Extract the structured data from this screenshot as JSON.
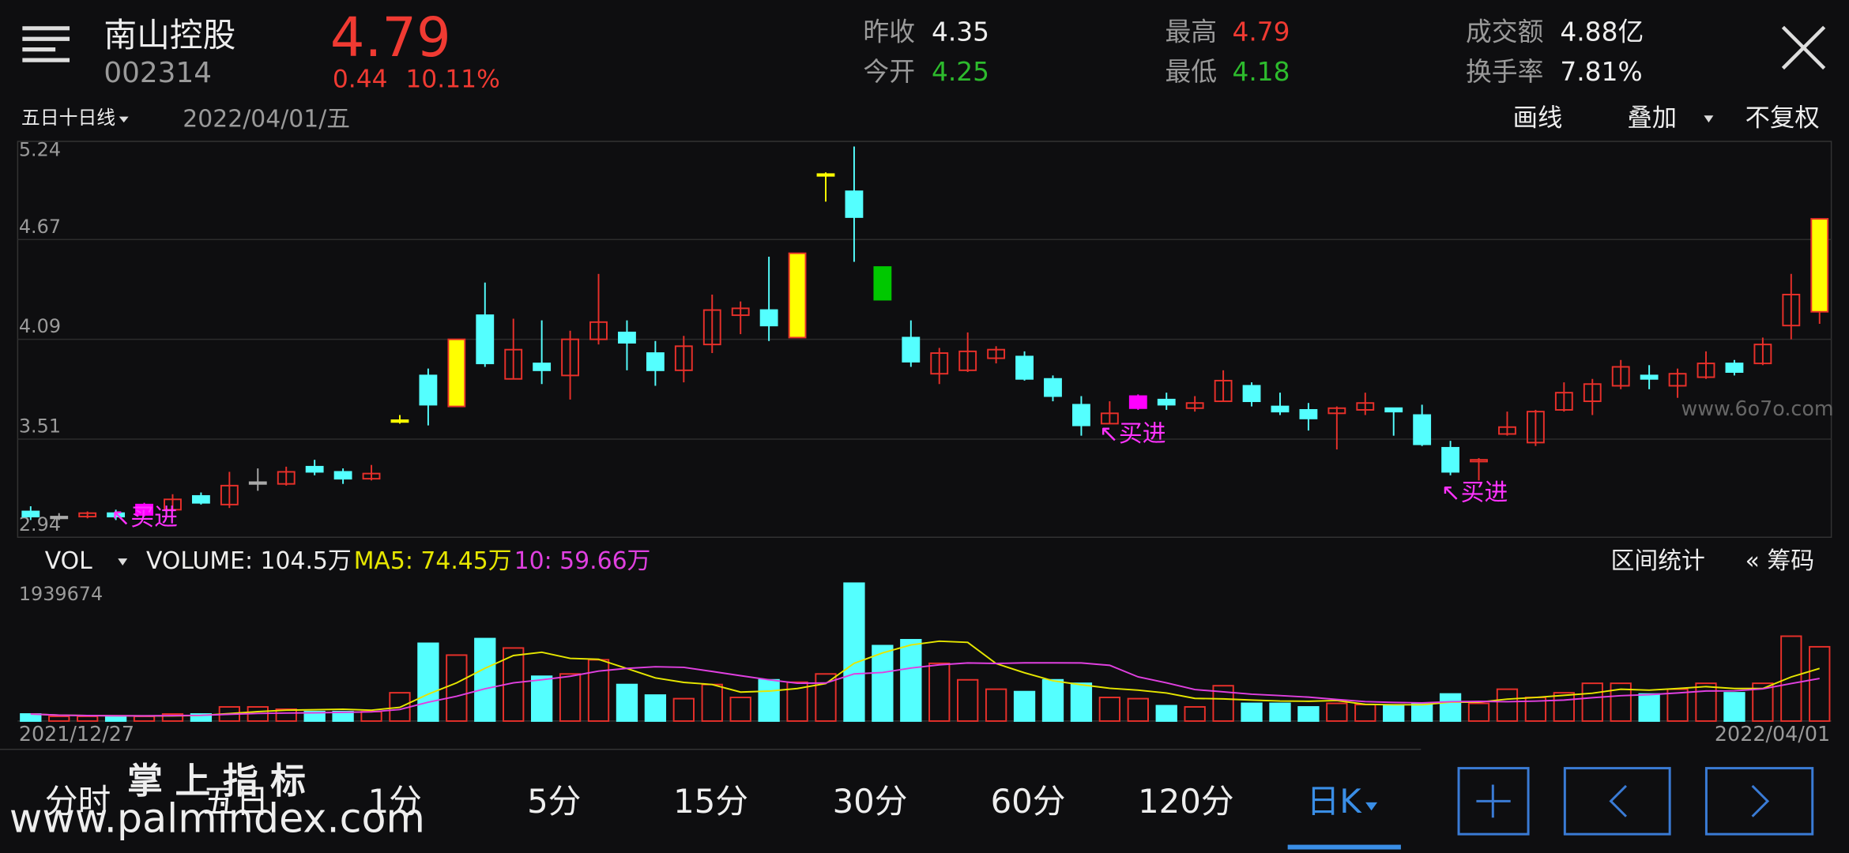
{
  "header": {
    "stock_name": "南山控股",
    "stock_code": "002314",
    "price": "4.79",
    "change": "0.44",
    "change_pct": "10.11%",
    "prev_close_label": "昨收",
    "prev_close": "4.35",
    "open_label": "今开",
    "open": "4.25",
    "high_label": "最高",
    "high": "4.79",
    "low_label": "最低",
    "low": "4.18",
    "turnover_label": "成交额",
    "turnover": "4.88亿",
    "turnover_rate_label": "换手率",
    "turnover_rate": "7.81%"
  },
  "toolbar": {
    "ma_selector": "五日十日线",
    "date": "2022/04/01/五",
    "draw": "画线",
    "overlay": "叠加",
    "adjust": "不复权"
  },
  "chart_data": {
    "type": "candlestick",
    "ylim": [
      2.94,
      5.24
    ],
    "yticks": [
      5.24,
      4.67,
      4.09,
      3.51,
      2.94
    ],
    "open": [
      3.09,
      3.06,
      3.06,
      3.08,
      3.07,
      3.1,
      3.18,
      3.13,
      3.26,
      3.25,
      3.35,
      3.32,
      3.28,
      3.61,
      3.88,
      3.7,
      4.23,
      3.86,
      3.95,
      3.88,
      4.09,
      4.13,
      4.01,
      3.91,
      4.06,
      4.23,
      4.26,
      4.1,
      5.05,
      4.95,
      4.51,
      4.1,
      3.89,
      3.91,
      3.98,
      3.99,
      3.86,
      3.71,
      3.6,
      3.69,
      3.74,
      3.69,
      3.73,
      3.82,
      3.7,
      3.68,
      3.66,
      3.68,
      3.69,
      3.65,
      3.46,
      3.38,
      3.54,
      3.49,
      3.68,
      3.73,
      3.82,
      3.88,
      3.82,
      3.87,
      3.95,
      3.95,
      4.17,
      4.25
    ],
    "high": [
      3.12,
      3.08,
      3.09,
      3.1,
      3.14,
      3.19,
      3.2,
      3.32,
      3.34,
      3.35,
      3.39,
      3.34,
      3.36,
      3.65,
      3.92,
      4.09,
      4.42,
      4.21,
      4.2,
      4.14,
      4.47,
      4.2,
      4.08,
      4.11,
      4.35,
      4.31,
      4.57,
      4.59,
      5.06,
      5.21,
      4.51,
      4.2,
      4.04,
      4.13,
      4.05,
      4.02,
      3.88,
      3.76,
      3.73,
      3.77,
      3.78,
      3.76,
      3.91,
      3.84,
      3.78,
      3.72,
      3.7,
      3.78,
      3.69,
      3.71,
      3.5,
      3.4,
      3.67,
      3.68,
      3.84,
      3.86,
      3.97,
      3.94,
      3.92,
      4.02,
      3.97,
      4.1,
      4.47,
      4.79
    ],
    "low": [
      3.04,
      3.04,
      3.05,
      3.04,
      3.06,
      3.09,
      3.13,
      3.11,
      3.21,
      3.24,
      3.3,
      3.25,
      3.27,
      3.6,
      3.59,
      3.7,
      3.93,
      3.86,
      3.83,
      3.74,
      4.06,
      3.91,
      3.82,
      3.84,
      4.01,
      4.12,
      4.08,
      4.1,
      4.89,
      4.54,
      4.32,
      3.93,
      3.83,
      3.9,
      3.95,
      3.85,
      3.73,
      3.53,
      3.6,
      3.68,
      3.68,
      3.67,
      3.73,
      3.7,
      3.65,
      3.56,
      3.45,
      3.65,
      3.53,
      3.47,
      3.3,
      3.27,
      3.53,
      3.47,
      3.67,
      3.65,
      3.8,
      3.8,
      3.75,
      3.86,
      3.88,
      3.94,
      4.09,
      4.18
    ],
    "close": [
      3.06,
      3.06,
      3.08,
      3.06,
      3.13,
      3.16,
      3.14,
      3.24,
      3.26,
      3.32,
      3.32,
      3.28,
      3.31,
      3.62,
      3.71,
      4.09,
      3.95,
      4.03,
      3.91,
      4.09,
      4.19,
      4.07,
      3.91,
      4.05,
      4.26,
      4.27,
      4.17,
      4.59,
      5.05,
      4.8,
      4.32,
      3.96,
      4.01,
      4.02,
      4.03,
      3.86,
      3.76,
      3.59,
      3.66,
      3.76,
      3.71,
      3.72,
      3.85,
      3.73,
      3.67,
      3.63,
      3.69,
      3.72,
      3.67,
      3.48,
      3.32,
      3.39,
      3.58,
      3.67,
      3.78,
      3.83,
      3.93,
      3.86,
      3.89,
      3.95,
      3.9,
      4.06,
      4.35,
      4.79
    ],
    "style": [
      "down",
      "doji",
      "up",
      "down",
      "signal",
      "up",
      "down",
      "up",
      "doji",
      "up",
      "down",
      "down",
      "up",
      "star",
      "down",
      "limit",
      "down",
      "up",
      "down",
      "up",
      "up",
      "down",
      "down",
      "up",
      "up",
      "up",
      "down",
      "limit",
      "star",
      "down",
      "limitdown",
      "down",
      "up",
      "up",
      "up",
      "down",
      "down",
      "down",
      "up",
      "signal",
      "down",
      "up",
      "up",
      "down",
      "down",
      "down",
      "up",
      "up",
      "down",
      "down",
      "down",
      "up",
      "up",
      "up",
      "up",
      "up",
      "up",
      "down",
      "up",
      "up",
      "down",
      "up",
      "up",
      "limit"
    ],
    "styles": {
      "up": {
        "stroke": "#e8302a",
        "fill": "none"
      },
      "down": {
        "stroke": "#54ffff",
        "fill": "#54ffff"
      },
      "doji": {
        "stroke": "#aaaaaa",
        "fill": "#aaaaaa"
      },
      "signal": {
        "stroke": "#ff00ff",
        "fill": "#ff00ff"
      },
      "star": {
        "stroke": "#ffff00",
        "fill": "#ffff00"
      },
      "limit": {
        "stroke": "#e8302a",
        "fill": "#ffff00"
      },
      "limitdown": {
        "stroke": "#00c800",
        "fill": "#00c800"
      }
    },
    "annotations": [
      "↖买进",
      "↖买进",
      "↖买进"
    ],
    "watermark": "www.6o7o.com",
    "volume": {
      "label": "VOL",
      "summary": "VOLUME: 104.5万",
      "ma5_label": "MA5: 74.45万",
      "ma10_label": "10: 59.66万",
      "ma": [
        {
          "period": 5,
          "color": "#e6e600"
        },
        {
          "period": 10,
          "color": "#e040e0"
        }
      ],
      "range_stats": "区间统计",
      "chips": "« 筹码",
      "ylim": [
        0,
        1939674
      ],
      "yticks": [
        1939674
      ],
      "values": [
        99000,
        66000,
        66000,
        66000,
        66000,
        99000,
        99000,
        199000,
        199000,
        166000,
        133000,
        133000,
        133000,
        398000,
        1094000,
        928000,
        1160000,
        1028000,
        630000,
        663000,
        862000,
        514000,
        365000,
        315000,
        514000,
        332000,
        580000,
        547000,
        663000,
        1939674,
        1061000,
        1144000,
        812000,
        580000,
        448000,
        414000,
        580000,
        531000,
        332000,
        315000,
        216000,
        199000,
        497000,
        249000,
        249000,
        199000,
        249000,
        232000,
        216000,
        249000,
        381000,
        249000,
        448000,
        332000,
        398000,
        531000,
        531000,
        381000,
        448000,
        531000,
        398000,
        531000,
        1194000,
        1045000
      ]
    },
    "x_start_label": "2021/12/27",
    "x_end_label": "2022/04/01"
  },
  "tabs": [
    "分时",
    "五日",
    "1分",
    "5分",
    "15分",
    "30分",
    "60分",
    "120分",
    "日K"
  ],
  "watermark": {
    "title": "掌 上 指 标",
    "url": "www.palmindex.com"
  }
}
